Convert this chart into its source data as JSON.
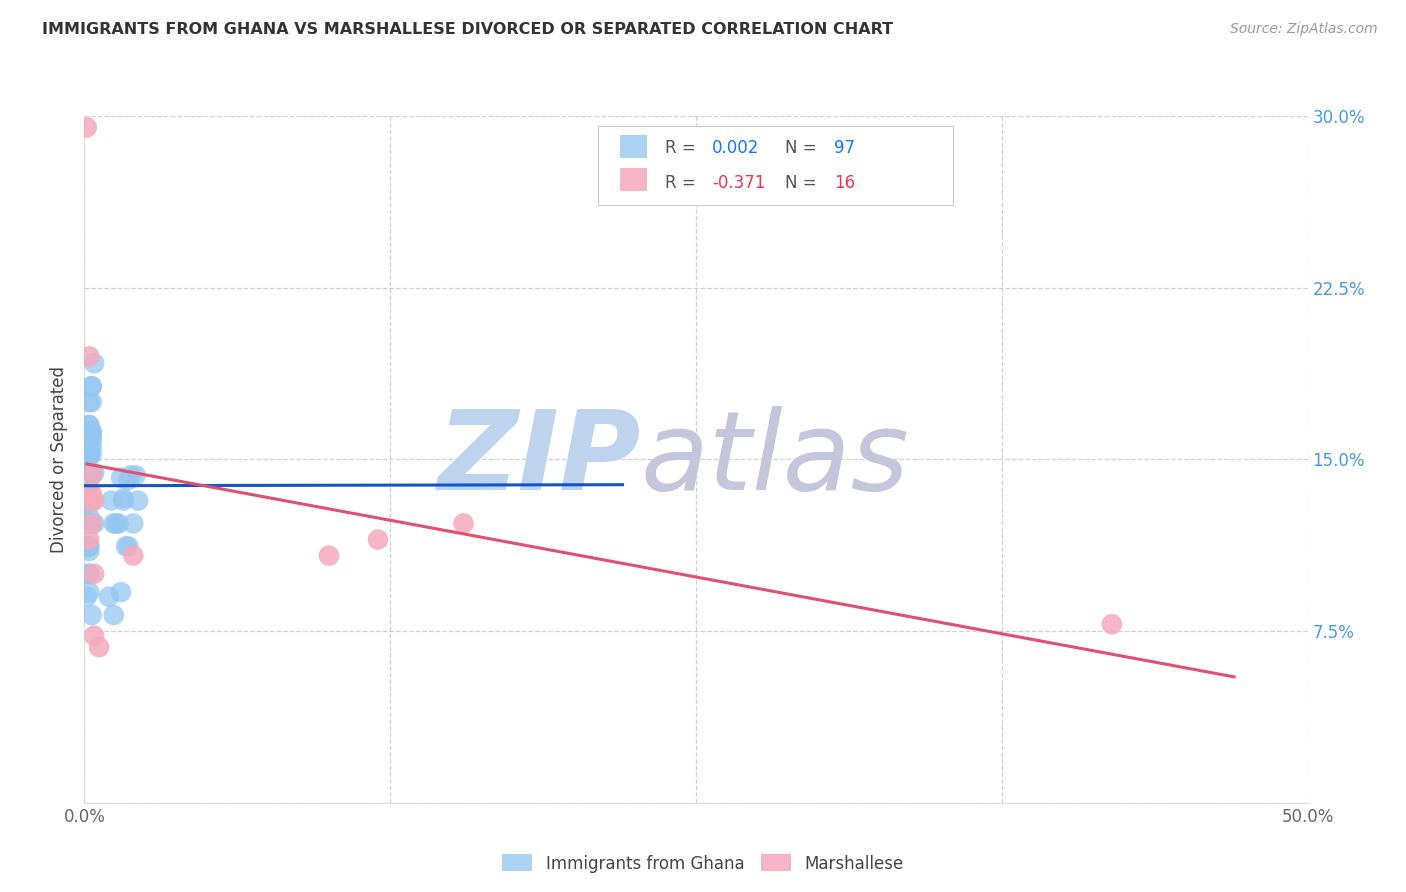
{
  "title": "IMMIGRANTS FROM GHANA VS MARSHALLESE DIVORCED OR SEPARATED CORRELATION CHART",
  "source": "Source: ZipAtlas.com",
  "ylabel": "Divorced or Separated",
  "xlim": [
    0.0,
    0.5
  ],
  "ylim": [
    0.0,
    0.3
  ],
  "xticks": [
    0.0,
    0.125,
    0.25,
    0.375,
    0.5
  ],
  "xticklabels": [
    "0.0%",
    "",
    "",
    "",
    "50.0%"
  ],
  "yticks": [
    0.0,
    0.075,
    0.15,
    0.225,
    0.3
  ],
  "left_yticklabels": [
    "",
    "",
    "",
    "",
    ""
  ],
  "right_yticklabels": [
    "",
    "7.5%",
    "15.0%",
    "22.5%",
    "30.0%"
  ],
  "ghana_r": 0.002,
  "ghana_n": 97,
  "marshallese_r": -0.371,
  "marshallese_n": 16,
  "ghana_color": "#92C5F0",
  "marshallese_color": "#F5AABB",
  "ghana_line_color": "#1155CC",
  "marshallese_line_color": "#E05070",
  "watermark_zip_color": "#C8D8F0",
  "watermark_atlas_color": "#C8CCE8",
  "legend_label_ghana": "Immigrants from Ghana",
  "legend_label_marshallese": "Marshallese",
  "right_tick_color": "#4499EE",
  "ghana_x": [
    0.001,
    0.002,
    0.001,
    0.002,
    0.001,
    0.003,
    0.002,
    0.001,
    0.004,
    0.002,
    0.001,
    0.002,
    0.003,
    0.002,
    0.001,
    0.002,
    0.003,
    0.001,
    0.002,
    0.001,
    0.002,
    0.001,
    0.003,
    0.001,
    0.004,
    0.002,
    0.002,
    0.003,
    0.001,
    0.002,
    0.001,
    0.001,
    0.002,
    0.001,
    0.003,
    0.002,
    0.003,
    0.002,
    0.001,
    0.002,
    0.003,
    0.001,
    0.002,
    0.002,
    0.003,
    0.001,
    0.003,
    0.001,
    0.002,
    0.001,
    0.002,
    0.001,
    0.001,
    0.002,
    0.001,
    0.002,
    0.002,
    0.001,
    0.002,
    0.002,
    0.003,
    0.001,
    0.002,
    0.002,
    0.003,
    0.001,
    0.004,
    0.001,
    0.002,
    0.001,
    0.002,
    0.003,
    0.001,
    0.002,
    0.003,
    0.002,
    0.001,
    0.002,
    0.003,
    0.002,
    0.015,
    0.022,
    0.018,
    0.012,
    0.016,
    0.019,
    0.014,
    0.011,
    0.02,
    0.017,
    0.021,
    0.013,
    0.016,
    0.018,
    0.01,
    0.012,
    0.015
  ],
  "ghana_y": [
    0.14,
    0.135,
    0.15,
    0.125,
    0.143,
    0.16,
    0.11,
    0.13,
    0.122,
    0.144,
    0.155,
    0.1,
    0.133,
    0.141,
    0.122,
    0.112,
    0.158,
    0.133,
    0.143,
    0.122,
    0.165,
    0.133,
    0.152,
    0.112,
    0.144,
    0.122,
    0.133,
    0.155,
    0.122,
    0.144,
    0.133,
    0.112,
    0.152,
    0.144,
    0.122,
    0.165,
    0.133,
    0.122,
    0.144,
    0.112,
    0.175,
    0.133,
    0.152,
    0.122,
    0.144,
    0.133,
    0.162,
    0.112,
    0.122,
    0.144,
    0.133,
    0.152,
    0.122,
    0.144,
    0.112,
    0.133,
    0.152,
    0.122,
    0.162,
    0.133,
    0.182,
    0.144,
    0.133,
    0.152,
    0.144,
    0.122,
    0.192,
    0.133,
    0.152,
    0.122,
    0.144,
    0.162,
    0.112,
    0.175,
    0.182,
    0.133,
    0.09,
    0.1,
    0.082,
    0.092,
    0.142,
    0.132,
    0.141,
    0.122,
    0.133,
    0.143,
    0.122,
    0.132,
    0.122,
    0.112,
    0.143,
    0.122,
    0.132,
    0.112,
    0.09,
    0.082,
    0.092
  ],
  "marshallese_x": [
    0.001,
    0.002,
    0.003,
    0.003,
    0.003,
    0.004,
    0.1,
    0.155,
    0.002,
    0.003,
    0.004,
    0.004,
    0.006,
    0.42,
    0.12,
    0.02
  ],
  "marshallese_y": [
    0.295,
    0.195,
    0.132,
    0.135,
    0.143,
    0.132,
    0.108,
    0.122,
    0.115,
    0.122,
    0.1,
    0.073,
    0.068,
    0.078,
    0.115,
    0.108
  ]
}
